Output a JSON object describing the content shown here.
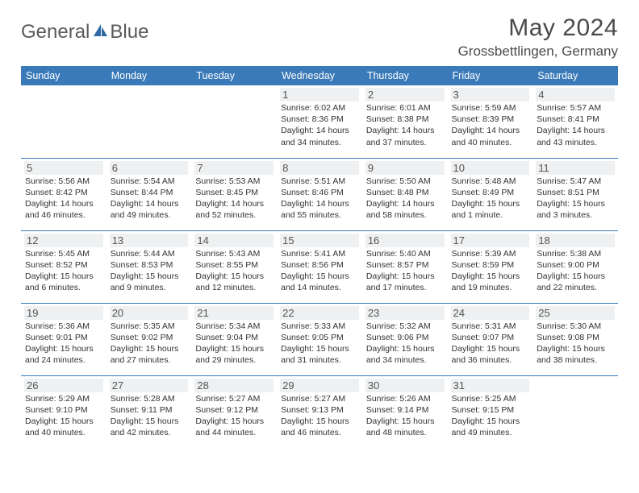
{
  "logo": {
    "part1": "General",
    "part2": "Blue"
  },
  "title": "May 2024",
  "location": "Grossbettlingen, Germany",
  "colors": {
    "header_bg": "#3a7ab8",
    "header_text": "#ffffff",
    "border": "#3a7ab8",
    "daynum_bg": "#eef0f1",
    "text": "#333333",
    "logo_grey": "#5a5a5a",
    "logo_blue": "#3a7ab8"
  },
  "dayNames": [
    "Sunday",
    "Monday",
    "Tuesday",
    "Wednesday",
    "Thursday",
    "Friday",
    "Saturday"
  ],
  "weeks": [
    [
      null,
      null,
      null,
      {
        "n": "1",
        "sr": "6:02 AM",
        "ss": "8:36 PM",
        "dl": "14 hours and 34 minutes."
      },
      {
        "n": "2",
        "sr": "6:01 AM",
        "ss": "8:38 PM",
        "dl": "14 hours and 37 minutes."
      },
      {
        "n": "3",
        "sr": "5:59 AM",
        "ss": "8:39 PM",
        "dl": "14 hours and 40 minutes."
      },
      {
        "n": "4",
        "sr": "5:57 AM",
        "ss": "8:41 PM",
        "dl": "14 hours and 43 minutes."
      }
    ],
    [
      {
        "n": "5",
        "sr": "5:56 AM",
        "ss": "8:42 PM",
        "dl": "14 hours and 46 minutes."
      },
      {
        "n": "6",
        "sr": "5:54 AM",
        "ss": "8:44 PM",
        "dl": "14 hours and 49 minutes."
      },
      {
        "n": "7",
        "sr": "5:53 AM",
        "ss": "8:45 PM",
        "dl": "14 hours and 52 minutes."
      },
      {
        "n": "8",
        "sr": "5:51 AM",
        "ss": "8:46 PM",
        "dl": "14 hours and 55 minutes."
      },
      {
        "n": "9",
        "sr": "5:50 AM",
        "ss": "8:48 PM",
        "dl": "14 hours and 58 minutes."
      },
      {
        "n": "10",
        "sr": "5:48 AM",
        "ss": "8:49 PM",
        "dl": "15 hours and 1 minute."
      },
      {
        "n": "11",
        "sr": "5:47 AM",
        "ss": "8:51 PM",
        "dl": "15 hours and 3 minutes."
      }
    ],
    [
      {
        "n": "12",
        "sr": "5:45 AM",
        "ss": "8:52 PM",
        "dl": "15 hours and 6 minutes."
      },
      {
        "n": "13",
        "sr": "5:44 AM",
        "ss": "8:53 PM",
        "dl": "15 hours and 9 minutes."
      },
      {
        "n": "14",
        "sr": "5:43 AM",
        "ss": "8:55 PM",
        "dl": "15 hours and 12 minutes."
      },
      {
        "n": "15",
        "sr": "5:41 AM",
        "ss": "8:56 PM",
        "dl": "15 hours and 14 minutes."
      },
      {
        "n": "16",
        "sr": "5:40 AM",
        "ss": "8:57 PM",
        "dl": "15 hours and 17 minutes."
      },
      {
        "n": "17",
        "sr": "5:39 AM",
        "ss": "8:59 PM",
        "dl": "15 hours and 19 minutes."
      },
      {
        "n": "18",
        "sr": "5:38 AM",
        "ss": "9:00 PM",
        "dl": "15 hours and 22 minutes."
      }
    ],
    [
      {
        "n": "19",
        "sr": "5:36 AM",
        "ss": "9:01 PM",
        "dl": "15 hours and 24 minutes."
      },
      {
        "n": "20",
        "sr": "5:35 AM",
        "ss": "9:02 PM",
        "dl": "15 hours and 27 minutes."
      },
      {
        "n": "21",
        "sr": "5:34 AM",
        "ss": "9:04 PM",
        "dl": "15 hours and 29 minutes."
      },
      {
        "n": "22",
        "sr": "5:33 AM",
        "ss": "9:05 PM",
        "dl": "15 hours and 31 minutes."
      },
      {
        "n": "23",
        "sr": "5:32 AM",
        "ss": "9:06 PM",
        "dl": "15 hours and 34 minutes."
      },
      {
        "n": "24",
        "sr": "5:31 AM",
        "ss": "9:07 PM",
        "dl": "15 hours and 36 minutes."
      },
      {
        "n": "25",
        "sr": "5:30 AM",
        "ss": "9:08 PM",
        "dl": "15 hours and 38 minutes."
      }
    ],
    [
      {
        "n": "26",
        "sr": "5:29 AM",
        "ss": "9:10 PM",
        "dl": "15 hours and 40 minutes."
      },
      {
        "n": "27",
        "sr": "5:28 AM",
        "ss": "9:11 PM",
        "dl": "15 hours and 42 minutes."
      },
      {
        "n": "28",
        "sr": "5:27 AM",
        "ss": "9:12 PM",
        "dl": "15 hours and 44 minutes."
      },
      {
        "n": "29",
        "sr": "5:27 AM",
        "ss": "9:13 PM",
        "dl": "15 hours and 46 minutes."
      },
      {
        "n": "30",
        "sr": "5:26 AM",
        "ss": "9:14 PM",
        "dl": "15 hours and 48 minutes."
      },
      {
        "n": "31",
        "sr": "5:25 AM",
        "ss": "9:15 PM",
        "dl": "15 hours and 49 minutes."
      },
      null
    ]
  ],
  "labels": {
    "sunrise": "Sunrise:",
    "sunset": "Sunset:",
    "daylight": "Daylight:"
  }
}
